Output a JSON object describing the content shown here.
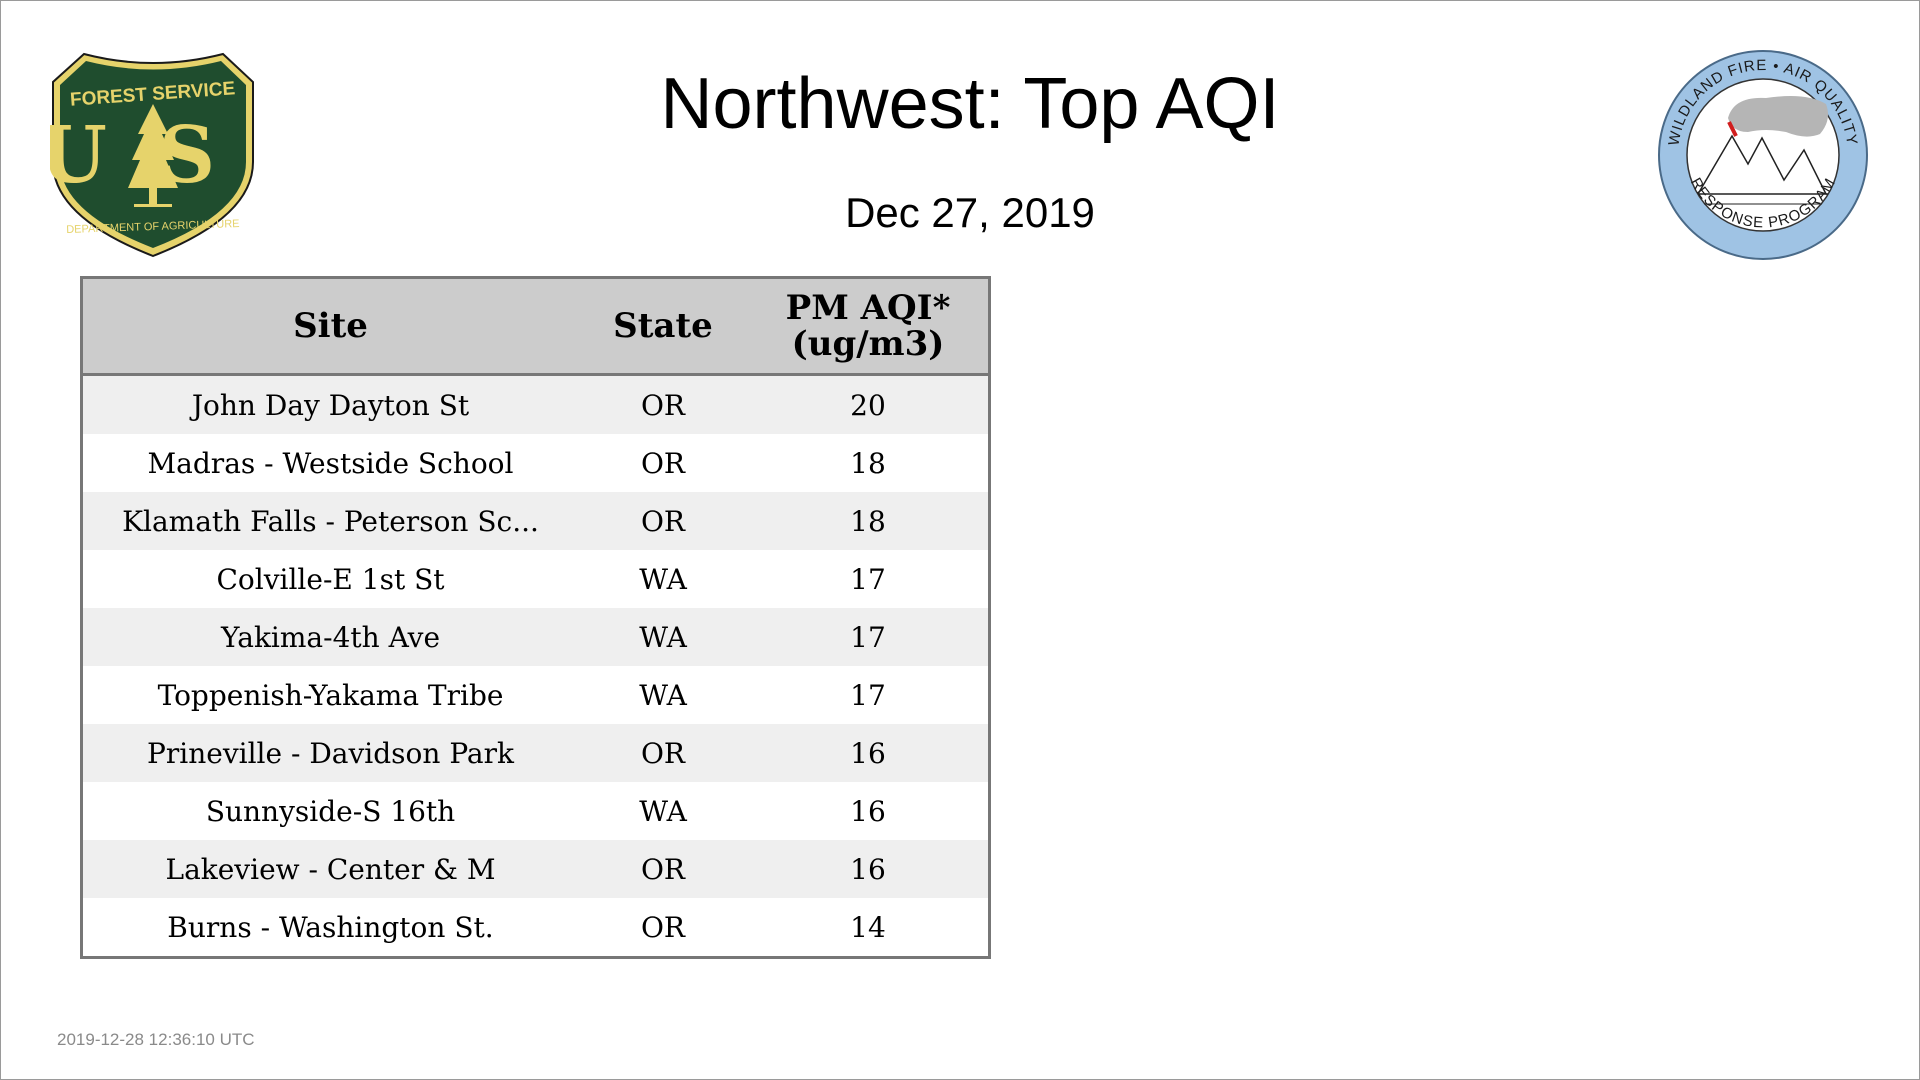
{
  "page": {
    "title": "Northwest: Top AQI",
    "date": "Dec 27, 2019",
    "timestamp": "2019-12-28 12:36:10 UTC"
  },
  "logos": {
    "left": {
      "icon": "forest-service-shield",
      "top_text": "FOREST SERVICE",
      "letters": "US",
      "bottom_text": "DEPARTMENT OF AGRICULTURE",
      "colors": {
        "fill": "#1f4d2e",
        "accent": "#e6d36b"
      }
    },
    "right": {
      "icon": "wildland-fire-air-quality-seal",
      "top_text": "WILDLAND FIRE • AIR QUALITY",
      "bottom_text": "RESPONSE PROGRAM",
      "colors": {
        "ring": "#9fc3e4",
        "smoke": "#b5b5b5",
        "flame": "#d11e1e"
      }
    }
  },
  "table": {
    "headers": {
      "site": "Site",
      "state": "State",
      "aqi_line1": "PM AQI*",
      "aqi_line2": "(ug/m3)"
    },
    "rows": [
      {
        "site": "John Day Dayton St",
        "state": "OR",
        "aqi": "20"
      },
      {
        "site": "Madras - Westside School",
        "state": "OR",
        "aqi": "18"
      },
      {
        "site": "Klamath Falls - Peterson Sc...",
        "state": "OR",
        "aqi": "18"
      },
      {
        "site": "Colville-E 1st St",
        "state": "WA",
        "aqi": "17"
      },
      {
        "site": "Yakima-4th Ave",
        "state": "WA",
        "aqi": "17"
      },
      {
        "site": "Toppenish-Yakama Tribe",
        "state": "WA",
        "aqi": "17"
      },
      {
        "site": "Prineville - Davidson Park",
        "state": "OR",
        "aqi": "16"
      },
      {
        "site": "Sunnyside-S 16th",
        "state": "WA",
        "aqi": "16"
      },
      {
        "site": "Lakeview - Center & M",
        "state": "OR",
        "aqi": "16"
      },
      {
        "site": "Burns - Washington St.",
        "state": "OR",
        "aqi": "14"
      }
    ],
    "colors": {
      "header_bg": "#cccccc",
      "stripe_bg": "#efefef",
      "border": "#777777"
    }
  }
}
